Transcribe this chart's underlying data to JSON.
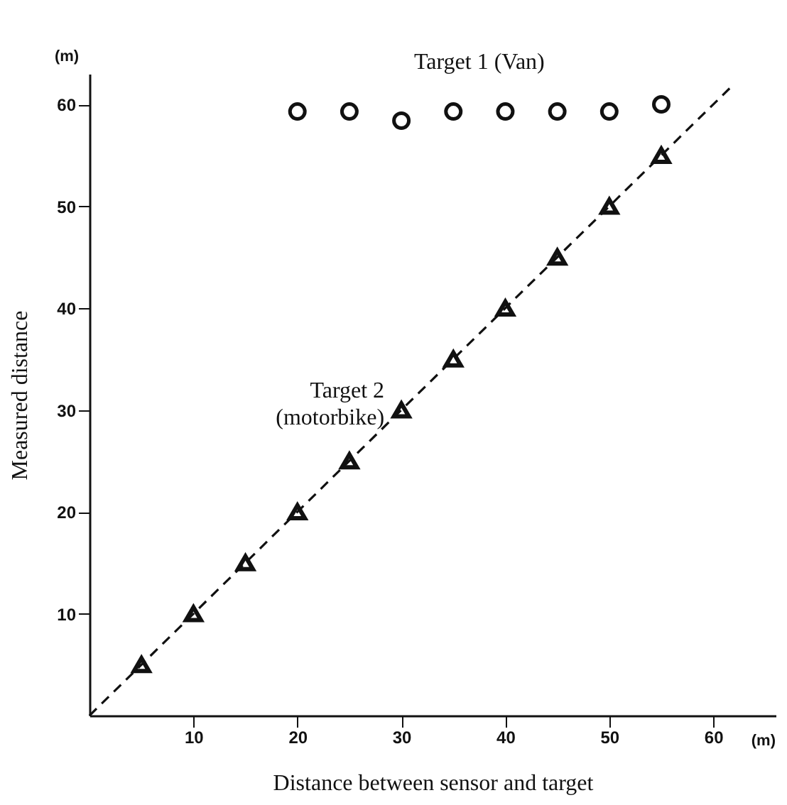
{
  "chart_data": {
    "type": "scatter",
    "xlabel": "Distance between sensor and target",
    "ylabel": "Measured distance",
    "series": [
      {
        "name": "Target 1 (Van)",
        "color": "#111111",
        "marker": "circle",
        "x": [
          20,
          25,
          30,
          35,
          40,
          45,
          50,
          55
        ],
        "values": [
          59.3,
          59.3,
          58.4,
          59.3,
          59.3,
          59.3,
          59.3,
          60.0
        ]
      },
      {
        "name": "Target 2 (motorbike)",
        "color": "#111111",
        "marker": "triangle",
        "x": [
          5,
          10,
          15,
          20,
          25,
          30,
          35,
          40,
          45,
          50,
          55
        ],
        "values": [
          5,
          10,
          15,
          20,
          25,
          30,
          35,
          40,
          45,
          50,
          55
        ]
      },
      {
        "type": "line",
        "color": "#111111",
        "line_style": "dashed",
        "marker": "none",
        "x": [
          0,
          62
        ],
        "values": [
          0,
          62
        ]
      }
    ],
    "xlim": [
      0,
      66
    ],
    "ylim": [
      0,
      63
    ],
    "xticks": [
      10,
      20,
      30,
      40,
      50,
      60
    ],
    "yticks": [
      10,
      20,
      30,
      40,
      50,
      60
    ],
    "annotations": [
      "(m)",
      "(m)"
    ],
    "grid": false
  }
}
